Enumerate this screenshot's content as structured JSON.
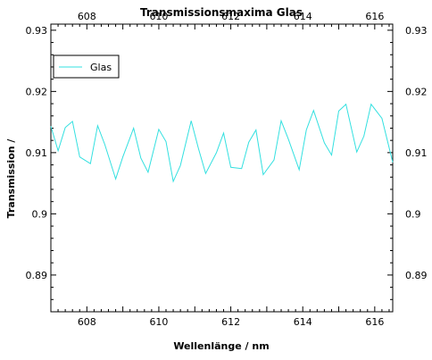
{
  "chart_data": {
    "type": "line",
    "title": "Transmissionsmaxima Glas",
    "xlabel": "Wellenlänge / nm",
    "ylabel": "Transmission /",
    "xlim": [
      607.0,
      616.5
    ],
    "ylim": [
      0.884,
      0.931
    ],
    "x_ticks_major": [
      608,
      610,
      612,
      614,
      616
    ],
    "y_ticks_major": [
      0.89,
      0.9,
      0.91,
      0.92,
      0.93
    ],
    "y_tick_labels": [
      "0.89",
      "0.9",
      "0.91",
      "0.92",
      "0.93"
    ],
    "grid": false,
    "legend_position": "top-left",
    "series": [
      {
        "name": "Glas",
        "color": "#33e0e0",
        "x": [
          607.0,
          607.2,
          607.4,
          607.6,
          607.8,
          608.1,
          608.3,
          608.5,
          608.8,
          609.0,
          609.3,
          609.5,
          609.7,
          610.0,
          610.2,
          610.4,
          610.6,
          610.9,
          611.1,
          611.3,
          611.6,
          611.8,
          612.0,
          612.3,
          612.5,
          612.7,
          612.9,
          613.2,
          613.4,
          613.6,
          613.9,
          614.1,
          614.3,
          614.6,
          614.8,
          615.0,
          615.2,
          615.5,
          615.7,
          615.9,
          616.2,
          616.5
        ],
        "y": [
          0.9143,
          0.9103,
          0.9141,
          0.9151,
          0.9093,
          0.9082,
          0.9144,
          0.9113,
          0.9057,
          0.9093,
          0.914,
          0.9091,
          0.9068,
          0.9138,
          0.9118,
          0.9053,
          0.9079,
          0.9152,
          0.9107,
          0.9066,
          0.91,
          0.9132,
          0.9076,
          0.9074,
          0.9117,
          0.9137,
          0.9064,
          0.9088,
          0.9152,
          0.9122,
          0.9072,
          0.9137,
          0.9169,
          0.9116,
          0.9096,
          0.9168,
          0.9179,
          0.9101,
          0.9127,
          0.9179,
          0.9156,
          0.9084
        ]
      }
    ]
  }
}
